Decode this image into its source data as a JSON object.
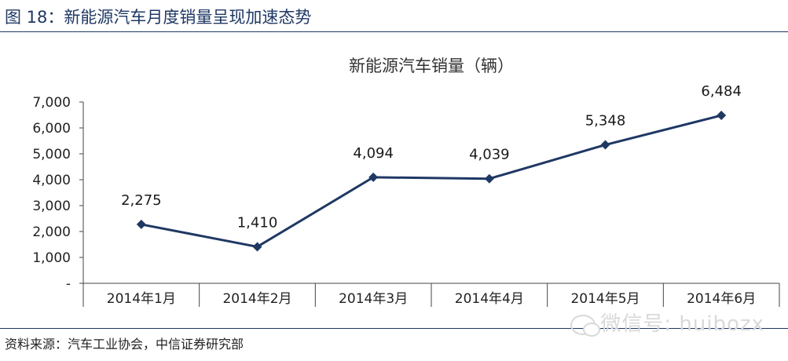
{
  "header": {
    "figure_label": "图 18：新能源汽车月度销量呈现加速态势"
  },
  "source": {
    "text": "资料来源：汽车工业协会，中信证券研究部"
  },
  "watermark": {
    "text": "微信号: huibozx",
    "icon": "wechat-icon"
  },
  "colors": {
    "line": "#1f3864",
    "rule": "#1f3864"
  },
  "chart_data": {
    "type": "line",
    "title": "新能源汽车销量（辆）",
    "categories": [
      "2014年1月",
      "2014年2月",
      "2014年3月",
      "2014年4月",
      "2014年5月",
      "2014年6月"
    ],
    "series": [
      {
        "values": [
          2275,
          1410,
          4094,
          4039,
          5348,
          6484
        ],
        "labels": [
          "2,275",
          "1,410",
          "4,094",
          "4,039",
          "5,348",
          "6,484"
        ]
      }
    ],
    "ylim": [
      0,
      7000
    ],
    "yticks": [
      0,
      1000,
      2000,
      3000,
      4000,
      5000,
      6000,
      7000
    ],
    "ytick_labels": [
      "-",
      "1,000",
      "2,000",
      "3,000",
      "4,000",
      "5,000",
      "6,000",
      "7,000"
    ],
    "grid": false,
    "legend": "none",
    "marker": "diamond"
  }
}
